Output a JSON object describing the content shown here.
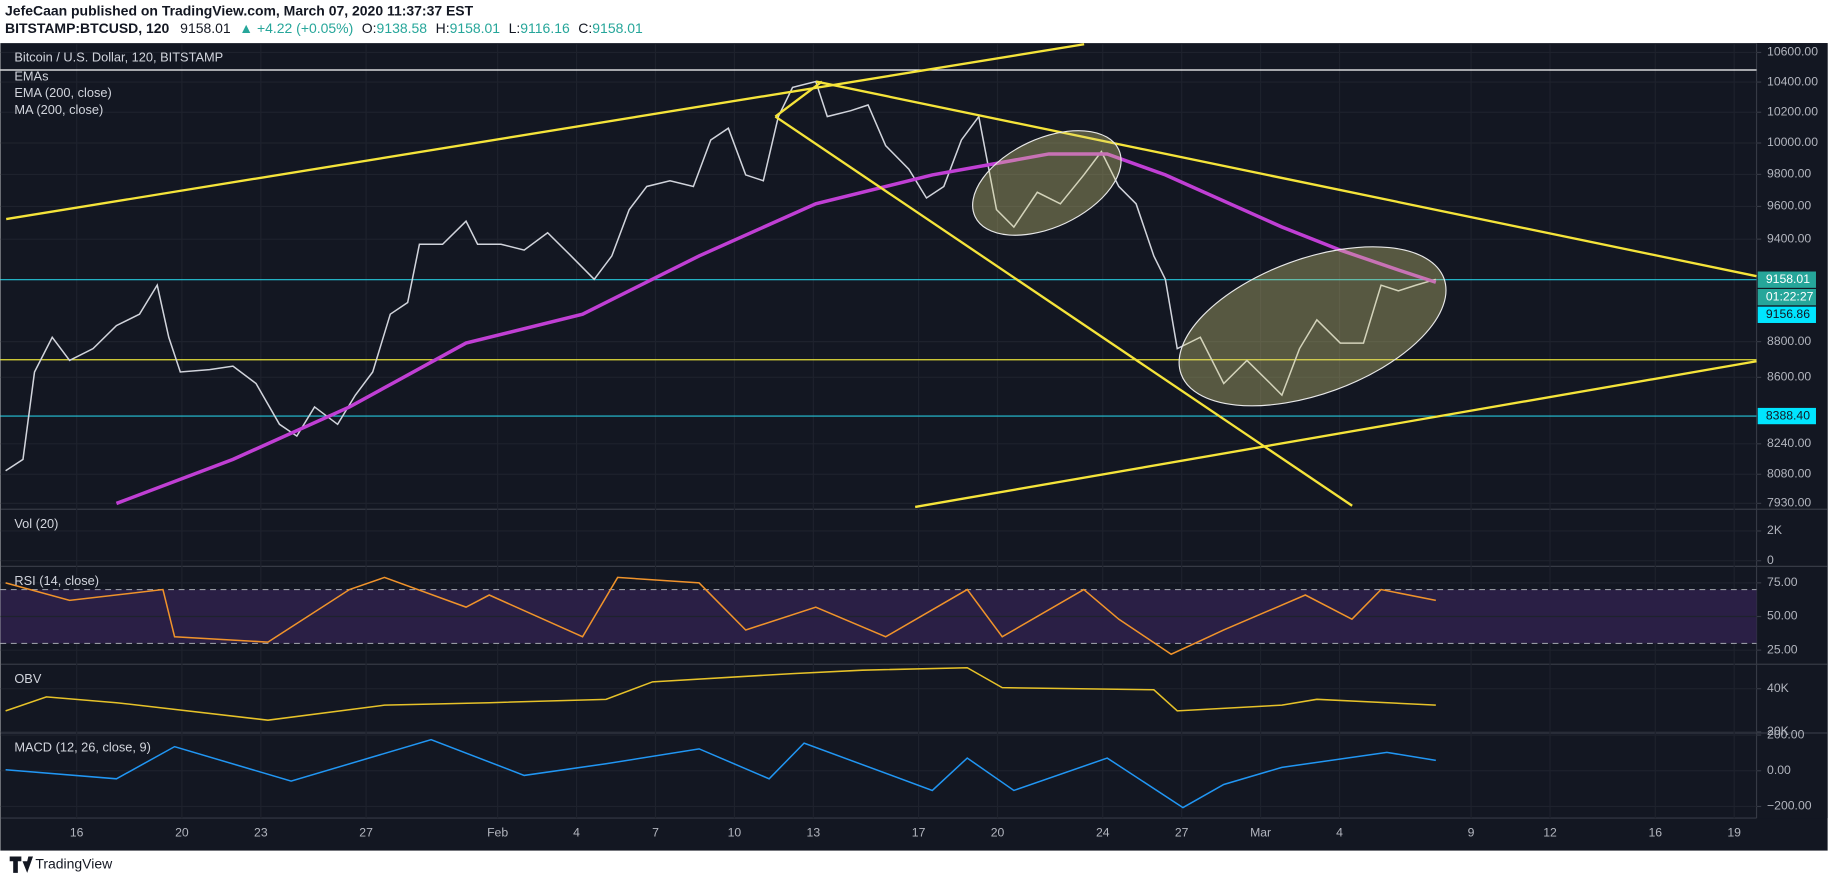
{
  "header": {
    "author_line": "JefeCaan published on TradingView.com, March 07, 2020 11:37:37 EST",
    "symbol": "BITSTAMP:BTCUSD, 120",
    "last": "9158.01",
    "change": "▲ +4.22 (+0.05%)",
    "ohlc": [
      {
        "label": "O:",
        "value": "9138.58"
      },
      {
        "label": "H:",
        "value": "9158.01"
      },
      {
        "label": "L:",
        "value": "9116.16"
      },
      {
        "label": "C:",
        "value": "9158.01"
      }
    ]
  },
  "footer": {
    "brand": "TradingView"
  },
  "chart_data": [
    {
      "type": "line",
      "title": "Bitcoin / U.S. Dollar, 120, BITSTAMP",
      "legend_items": [
        "EMAs",
        "EMA (200, close)"
      ],
      "log_scale": true,
      "xlim": [
        13.1,
        79.85
      ],
      "xticks": [
        {
          "value": 16,
          "label": "16"
        },
        {
          "value": 20,
          "label": "20"
        },
        {
          "value": 23,
          "label": "23"
        },
        {
          "value": 27,
          "label": "27"
        },
        {
          "value": 32,
          "label": "Feb"
        },
        {
          "value": 35,
          "label": "4"
        },
        {
          "value": 38,
          "label": "7"
        },
        {
          "value": 41,
          "label": "10"
        },
        {
          "value": 44,
          "label": "13"
        },
        {
          "value": 48,
          "label": "17"
        },
        {
          "value": 51,
          "label": "20"
        },
        {
          "value": 55,
          "label": "24"
        },
        {
          "value": 58,
          "label": "27"
        },
        {
          "value": 61,
          "label": "Mar"
        },
        {
          "value": 64,
          "label": "4"
        },
        {
          "value": 69,
          "label": "9"
        },
        {
          "value": 72,
          "label": "12"
        },
        {
          "value": 76,
          "label": "16"
        },
        {
          "value": 79,
          "label": "19"
        }
      ],
      "ylim": [
        7906,
        10656
      ],
      "yticks": [
        {
          "value": 10600,
          "label": "10600.00"
        },
        {
          "value": 10400,
          "label": "10400.00"
        },
        {
          "value": 10200,
          "label": "10200.00"
        },
        {
          "value": 10000,
          "label": "10000.00"
        },
        {
          "value": 9800,
          "label": "9800.00"
        },
        {
          "value": 9600,
          "label": "9600.00"
        },
        {
          "value": 9400,
          "label": "9400.00"
        },
        {
          "value": 8800,
          "label": "8800.00"
        },
        {
          "value": 8600,
          "label": "8600.00"
        },
        {
          "value": 8240,
          "label": "8240.00"
        },
        {
          "value": 8080,
          "label": "8080.00"
        },
        {
          "value": 7930,
          "label": "7930.00"
        }
      ],
      "levels": [
        {
          "value": 10481,
          "color": "#ffffff"
        },
        {
          "value": 9158.01,
          "color": "#26c6da"
        },
        {
          "value": 8698,
          "color": "#e6e03a"
        },
        {
          "value": 8388.4,
          "color": "#26c6da"
        }
      ],
      "price_labels": [
        {
          "value": 9158.01,
          "label": "9158.01",
          "color": "#26a69a"
        },
        {
          "value": 9156.86,
          "label": "9156.86",
          "color": "#00e5ff"
        },
        {
          "value": 8388.4,
          "label": "8388.40",
          "color": "#00e5ff"
        }
      ],
      "countdown": "01:22:27",
      "series": [
        {
          "color": "#d1d4dc",
          "x": [
            13.3,
            13.96,
            14.4,
            15.07,
            15.73,
            16.62,
            17.51,
            18.39,
            19.06,
            19.5,
            19.94,
            21.05,
            21.94,
            22.82,
            23.71,
            24.37,
            25.04,
            25.92,
            26.59,
            27.25,
            27.92,
            28.58,
            29.03,
            29.91,
            30.8,
            31.24,
            32.13,
            33.01,
            33.9,
            34.79,
            35.67,
            36.34,
            37.0,
            37.67,
            38.55,
            39.44,
            40.1,
            40.77,
            41.43,
            42.1,
            42.67,
            43.21,
            44.09,
            44.53,
            45.42,
            46.08,
            46.75,
            47.63,
            48.3,
            48.96,
            49.63,
            50.29,
            50.96,
            51.62,
            52.51,
            53.39,
            54.28,
            54.95,
            55.61,
            56.27,
            56.94,
            57.38,
            57.83,
            58.71,
            59.6,
            60.48,
            61.37,
            61.81,
            62.48,
            63.14,
            64.03,
            64.91,
            65.58,
            66.24,
            66.91,
            67.66
          ],
          "values": [
            8098,
            8158,
            8630,
            8825,
            8694,
            8760,
            8891,
            8957,
            9126,
            8825,
            8630,
            8643,
            8662,
            8566,
            8344,
            8281,
            8438,
            8344,
            8502,
            8630,
            8957,
            9024,
            9369,
            9369,
            9509,
            9369,
            9369,
            9334,
            9439,
            9299,
            9160,
            9299,
            9580,
            9724,
            9760,
            9724,
            10020,
            10096,
            9797,
            9760,
            10172,
            10364,
            10403,
            10172,
            10210,
            10248,
            9983,
            9833,
            9652,
            9724,
            10020,
            10172,
            9580,
            9474,
            9688,
            9616,
            9797,
            9945,
            9724,
            9616,
            9299,
            9160,
            8760,
            8825,
            8566,
            8694,
            8566,
            8502,
            8760,
            8924,
            8792,
            8792,
            9126,
            9092,
            9126,
            9160
          ]
        },
        {
          "name": "MA (200, close)",
          "color": "#c03fd4",
          "x": [
            17.51,
            21.94,
            26.37,
            30.8,
            35.23,
            39.66,
            44.09,
            48.52,
            52.95,
            55.17,
            57.38,
            61.81,
            64.03,
            66.24,
            67.66
          ],
          "values": [
            7930,
            8158,
            8438,
            8792,
            8957,
            9299,
            9616,
            9797,
            9930,
            9930,
            9797,
            9474,
            9334,
            9215,
            9143
          ]
        }
      ]
    },
    {
      "type": "bar",
      "title": "Vol (20)",
      "ylim": [
        -300,
        3380
      ],
      "yticks": [
        {
          "value": 2000,
          "label": "2K"
        },
        0
      ]
    },
    {
      "type": "line",
      "title": "RSI (14, close)",
      "ylim": [
        15.4,
        86.4
      ],
      "yticks": [
        {
          "value": 75,
          "label": "75.00"
        },
        {
          "value": 50,
          "label": "50.00"
        },
        {
          "value": 25,
          "label": "25.00"
        }
      ],
      "bands": [
        70,
        30
      ],
      "series": [
        {
          "color": "#f0932b",
          "x": [
            13.3,
            15.73,
            19.28,
            19.72,
            23.27,
            26.37,
            27.7,
            30.8,
            31.68,
            35.23,
            36.56,
            39.66,
            41.43,
            44.09,
            46.75,
            49.85,
            51.18,
            54.28,
            55.61,
            57.6,
            59.6,
            62.7,
            64.47,
            65.58,
            67.66
          ],
          "values": [
            75,
            62,
            70,
            35,
            31,
            70,
            79,
            57,
            66,
            35,
            79,
            75,
            40,
            57,
            35,
            70,
            35,
            70,
            48,
            22,
            40,
            66,
            48,
            70,
            62
          ]
        }
      ]
    },
    {
      "type": "line",
      "title": "OBV",
      "ylim": [
        20000,
        50800
      ],
      "yticks": [
        {
          "value": 40000,
          "label": "40K"
        },
        {
          "value": 20000,
          "label": "20K"
        }
      ],
      "series": [
        {
          "color": "#e6c229",
          "x": [
            13.3,
            14.85,
            17.51,
            23.27,
            27.7,
            31.68,
            36.12,
            37.89,
            43.21,
            45.87,
            49.85,
            51.18,
            56.94,
            57.83,
            61.81,
            63.14,
            67.66
          ],
          "values": [
            29700,
            36200,
            33500,
            25400,
            32400,
            33500,
            35100,
            43200,
            47000,
            48600,
            49700,
            40500,
            39500,
            29700,
            32400,
            35100,
            32400
          ]
        }
      ]
    },
    {
      "type": "line",
      "title": "MACD (12, 26, close, 9)",
      "ylim": [
        -265,
        205
      ],
      "yticks": [
        {
          "value": 200,
          "label": "200.00"
        },
        {
          "value": 0,
          "label": "0.00"
        },
        {
          "value": -200,
          "label": "−200.00"
        }
      ],
      "series": [
        {
          "color": "#2196f3",
          "x": [
            13.3,
            17.51,
            19.72,
            24.15,
            29.47,
            33.01,
            36.12,
            39.66,
            42.32,
            43.65,
            48.52,
            49.85,
            51.62,
            55.17,
            58.05,
            59.6,
            61.81,
            65.8,
            67.66
          ],
          "values": [
            6,
            -45,
            135,
            -58,
            174,
            -26,
            39,
            123,
            -45,
            155,
            -110,
            71,
            -110,
            71,
            -206,
            -77,
            19,
            103,
            58
          ]
        }
      ]
    }
  ]
}
